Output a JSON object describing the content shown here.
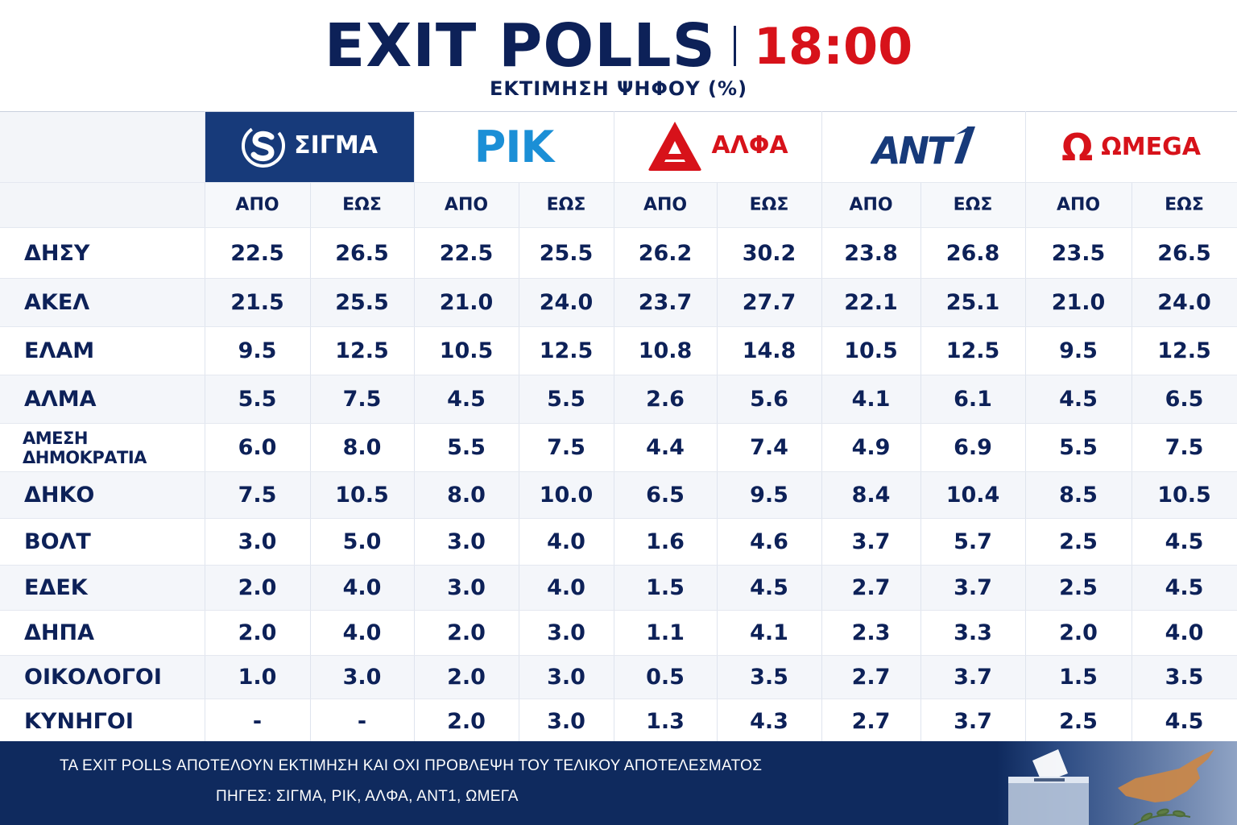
{
  "header": {
    "title": "EXIT POLLS",
    "time": "18:00",
    "subtitle": "ΕΚΤΙΜΗΣΗ ΨΗΦΟΥ (%)"
  },
  "broadcasters": [
    {
      "id": "sigma",
      "name": "ΣΙΓΜΑ",
      "logo_icon": "sigma-s-icon"
    },
    {
      "id": "rik",
      "name": "ΡΙΚ",
      "logo_icon": "rik-logo"
    },
    {
      "id": "alfa",
      "name": "ΑΛΦΑ",
      "logo_icon": "alfa-triangle-icon"
    },
    {
      "id": "ant1",
      "name": "ANT1",
      "logo_icon": "ant1-logo"
    },
    {
      "id": "omega",
      "name": "ΩMEGA",
      "logo_icon": "omega-icon",
      "symbol": "Ω"
    }
  ],
  "range_labels": {
    "from": "ΑΠΟ",
    "to": "ΕΩΣ"
  },
  "rows": [
    {
      "party": "ΔΗΣΥ",
      "values": [
        "22.5",
        "26.5",
        "22.5",
        "25.5",
        "26.2",
        "30.2",
        "23.8",
        "26.8",
        "23.5",
        "26.5"
      ]
    },
    {
      "party": "ΑΚΕΛ",
      "values": [
        "21.5",
        "25.5",
        "21.0",
        "24.0",
        "23.7",
        "27.7",
        "22.1",
        "25.1",
        "21.0",
        "24.0"
      ]
    },
    {
      "party": "ΕΛΑΜ",
      "values": [
        "9.5",
        "12.5",
        "10.5",
        "12.5",
        "10.8",
        "14.8",
        "10.5",
        "12.5",
        "9.5",
        "12.5"
      ]
    },
    {
      "party": "ΑΛΜΑ",
      "values": [
        "5.5",
        "7.5",
        "4.5",
        "5.5",
        "2.6",
        "5.6",
        "4.1",
        "6.1",
        "4.5",
        "6.5"
      ]
    },
    {
      "party": "ΑΜΕΣΗ ΔΗΜΟΚΡΑΤΙΑ",
      "values": [
        "6.0",
        "8.0",
        "5.5",
        "7.5",
        "4.4",
        "7.4",
        "4.9",
        "6.9",
        "5.5",
        "7.5"
      ]
    },
    {
      "party": "ΔΗΚΟ",
      "values": [
        "7.5",
        "10.5",
        "8.0",
        "10.0",
        "6.5",
        "9.5",
        "8.4",
        "10.4",
        "8.5",
        "10.5"
      ]
    },
    {
      "party": "ΒΟΛΤ",
      "values": [
        "3.0",
        "5.0",
        "3.0",
        "4.0",
        "1.6",
        "4.6",
        "3.7",
        "5.7",
        "2.5",
        "4.5"
      ]
    },
    {
      "party": "ΕΔΕΚ",
      "values": [
        "2.0",
        "4.0",
        "3.0",
        "4.0",
        "1.5",
        "4.5",
        "2.7",
        "3.7",
        "2.5",
        "4.5"
      ]
    },
    {
      "party": "ΔΗΠΑ",
      "values": [
        "2.0",
        "4.0",
        "2.0",
        "3.0",
        "1.1",
        "4.1",
        "2.3",
        "3.3",
        "2.0",
        "4.0"
      ]
    },
    {
      "party": "ΟΙΚΟΛΟΓΟΙ",
      "values": [
        "1.0",
        "3.0",
        "2.0",
        "3.0",
        "0.5",
        "3.5",
        "2.7",
        "3.7",
        "1.5",
        "3.5"
      ]
    },
    {
      "party": "ΚΥΝΗΓΟΙ",
      "values": [
        "-",
        "-",
        "2.0",
        "3.0",
        "1.3",
        "4.3",
        "2.7",
        "3.7",
        "2.5",
        "4.5"
      ]
    }
  ],
  "footer": {
    "note": "ΤΑ EXIT POLLS ΑΠΟΤΕΛΟΥΝ ΕΚΤΙΜΗΣΗ ΚΑΙ ΟΧΙ ΠΡΟΒΛΕΨΗ ΤΟΥ ΤΕΛΙΚΟΥ ΑΠΟΤΕΛΕΣΜΑΤΟΣ",
    "sources": "ΠΗΓΕΣ: ΣΙΓΜΑ, ΡΙΚ, ΑΛΦΑ, ΑΝΤ1, ΩΜΕΓΑ",
    "art_icons": [
      "ballot-box-icon",
      "cyprus-map-icon",
      "olive-branch-icon"
    ]
  },
  "colors": {
    "navy": "#0d2158",
    "red": "#d7121a",
    "sigma_bg": "#173a7a",
    "rik_blue": "#1b8fd6",
    "footer_bg": "#0f2a5e",
    "cyprus_copper": "#c8874a"
  }
}
